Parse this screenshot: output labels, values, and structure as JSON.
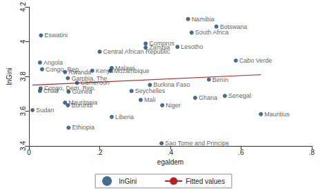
{
  "chart_data": {
    "type": "scatter",
    "x_label": "egaldem",
    "y_label": "lnGini",
    "xlim": [
      0,
      0.8
    ],
    "ylim": [
      3.4,
      4.2
    ],
    "xticks": [
      0,
      {
        "value": 0.2,
        "label": ".2"
      },
      {
        "value": 0.4,
        "label": ".4"
      },
      {
        "value": 0.6,
        "label": ".6"
      },
      {
        "value": 0.8,
        "label": ".8"
      }
    ],
    "yticks": [
      3.4,
      3.6,
      3.8,
      4,
      4.2
    ],
    "grid": false,
    "legend": "bottom",
    "series": [
      {
        "name": "lnGini",
        "type": "scatter",
        "marker": "circle",
        "color": "#1a476f",
        "point_labels": [
          "Namibia",
          "Botswana",
          "South Africa",
          "Eswatini",
          "Comoros",
          "Zambia",
          "Lesotho",
          "Central African Republic",
          "Angola",
          "Congo, Rep.",
          "Rwanda",
          "Kenya",
          "Malawi",
          "Mozambique",
          "Cabo Verde",
          "Gambia, The",
          "Benin",
          "Cameroon",
          "Burkina Faso",
          "Congo, Dem. Rep.",
          "Chad",
          "Guinea",
          "Seychelles",
          "Senegal",
          "Mali",
          "Ghana",
          "Mauritania",
          "Burundi",
          "Niger",
          "Sudan",
          "Mauritius",
          "Liberia",
          "Ethiopia",
          "Sao Tome and Principe"
        ],
        "x": [
          0.45,
          0.53,
          0.46,
          0.034,
          0.33,
          0.33,
          0.42,
          0.2,
          0.031,
          0.037,
          0.102,
          0.179,
          0.234,
          0.23,
          0.585,
          0.11,
          0.509,
          0.136,
          0.342,
          0.033,
          0.031,
          0.112,
          0.29,
          0.554,
          0.316,
          0.47,
          0.102,
          0.11,
          0.377,
          0.01,
          0.656,
          0.234,
          0.112,
          0.375
        ],
        "values": [
          4.13,
          4.087,
          4.052,
          4.036,
          3.989,
          3.966,
          3.97,
          3.942,
          3.88,
          3.841,
          3.825,
          3.833,
          3.848,
          3.833,
          3.891,
          3.79,
          3.782,
          3.763,
          3.751,
          3.731,
          3.716,
          3.712,
          3.716,
          3.688,
          3.665,
          3.677,
          3.649,
          3.634,
          3.634,
          3.606,
          3.583,
          3.567,
          3.505,
          3.415
        ]
      },
      {
        "name": "Fitted values",
        "type": "line",
        "line_style": "solid",
        "color": "#b22222",
        "x": [
          0.01,
          0.656
        ],
        "values": [
          3.75,
          3.81
        ]
      }
    ]
  }
}
